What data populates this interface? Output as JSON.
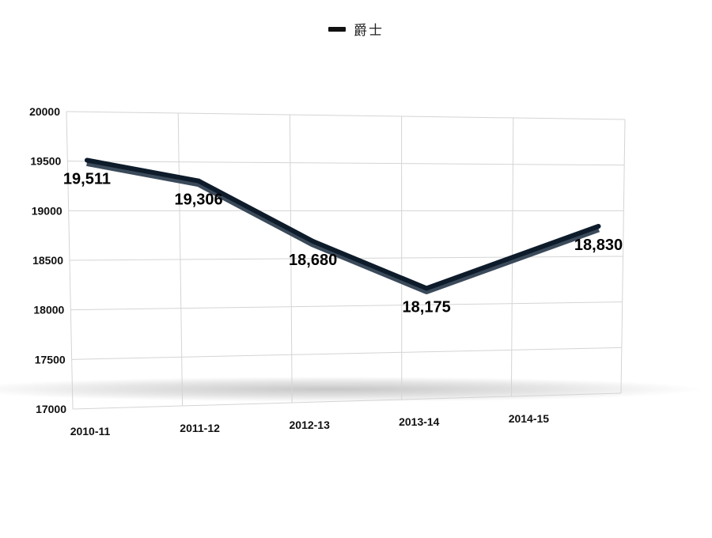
{
  "chart_data": {
    "type": "line",
    "title": "",
    "xlabel": "",
    "ylabel": "",
    "categories": [
      "2010-11",
      "2011-12",
      "2012-13",
      "2013-14",
      "2014-15"
    ],
    "series": [
      {
        "name": "爵士",
        "values": [
          19511,
          19306,
          18680,
          18175,
          18830
        ],
        "color": "#0d1b2a"
      }
    ],
    "data_labels": [
      "19,511",
      "19,306",
      "18,680",
      "18,175",
      "18,830"
    ],
    "yticks": [
      "17000",
      "17500",
      "18000",
      "18500",
      "19000",
      "19500",
      "20000"
    ],
    "ylim": [
      17000,
      20000
    ],
    "grid": true,
    "legend_position": "top-center",
    "perspective": "3d-tilted"
  }
}
